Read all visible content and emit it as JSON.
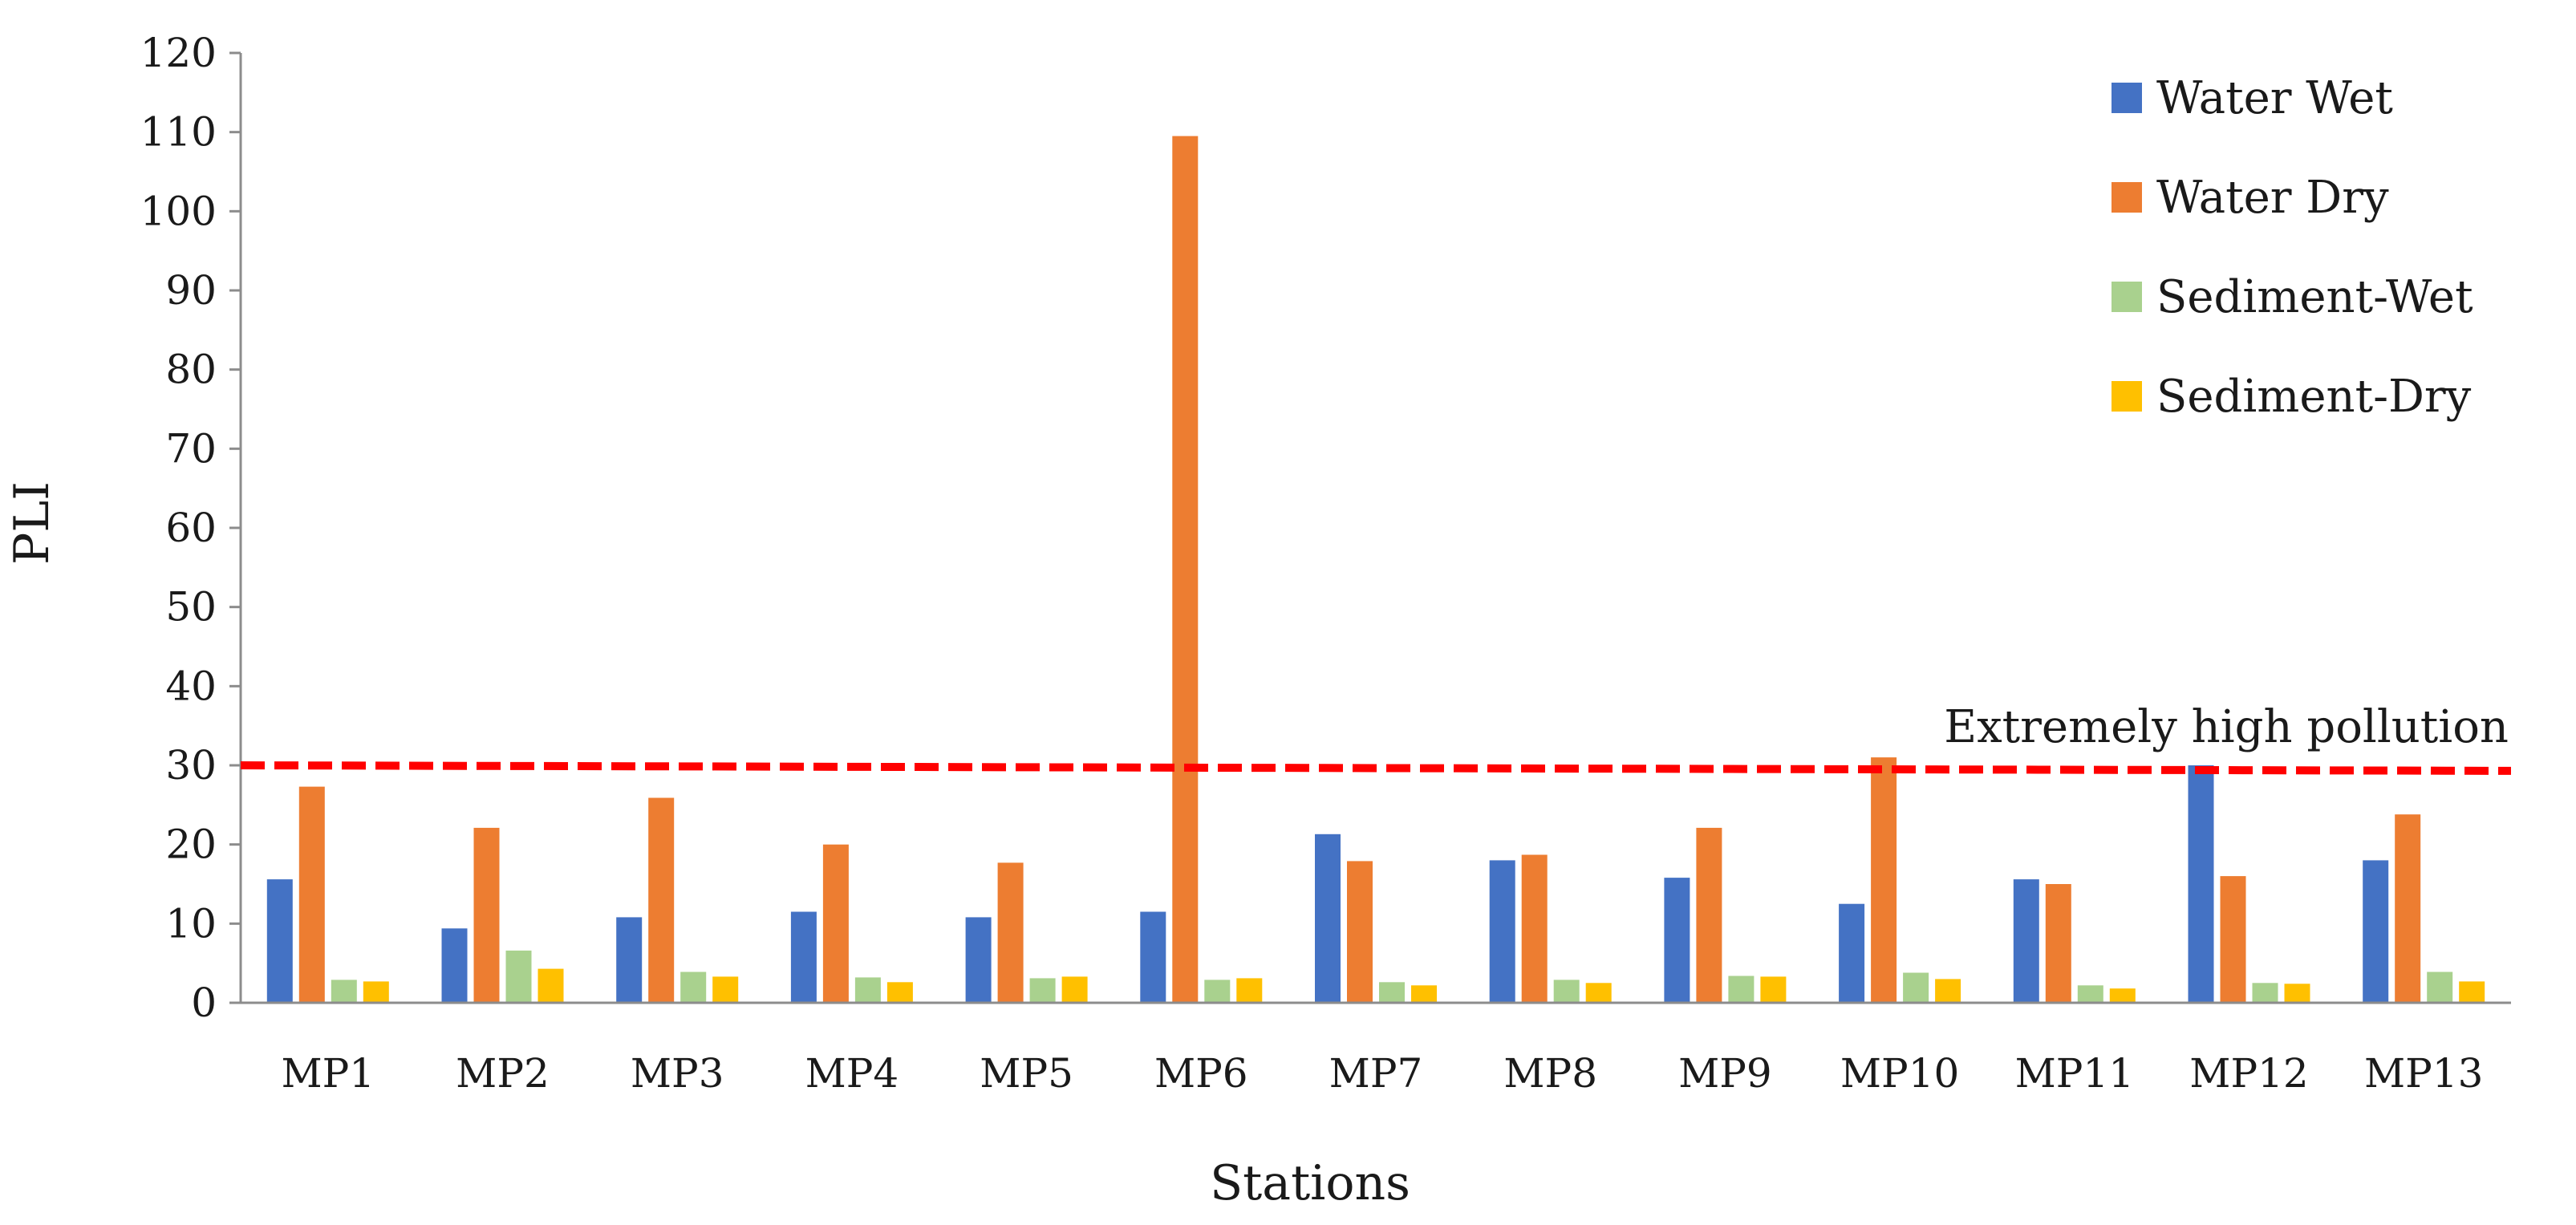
{
  "chart_data": {
    "type": "bar",
    "title": "",
    "xlabel": "Stations",
    "ylabel": "PLI",
    "ylim": [
      0,
      120
    ],
    "yticks": [
      0,
      10,
      20,
      30,
      40,
      50,
      60,
      70,
      80,
      90,
      100,
      110,
      120
    ],
    "grid": false,
    "legend_position": "top-right",
    "categories": [
      "MP1",
      "MP2",
      "MP3",
      "MP4",
      "MP5",
      "MP6",
      "MP7",
      "MP8",
      "MP9",
      "MP10",
      "MP11",
      "MP12",
      "MP13"
    ],
    "series": [
      {
        "name": "Water Wet",
        "color": "#4472C4",
        "values": [
          15.6,
          9.4,
          10.8,
          11.5,
          10.8,
          11.5,
          21.3,
          18.0,
          15.8,
          12.5,
          15.6,
          30.0,
          18.0
        ]
      },
      {
        "name": "Water Dry",
        "color": "#ED7D31",
        "values": [
          27.3,
          22.1,
          25.9,
          20.0,
          17.7,
          109.5,
          17.9,
          18.7,
          22.1,
          31.0,
          15.0,
          16.0,
          23.8
        ]
      },
      {
        "name": "Sediment-Wet",
        "color": "#A9D18E",
        "values": [
          2.9,
          6.6,
          3.9,
          3.2,
          3.1,
          2.9,
          2.6,
          2.9,
          3.4,
          3.8,
          2.2,
          2.5,
          3.9
        ]
      },
      {
        "name": "Sediment-Dry",
        "color": "#FFC000",
        "values": [
          2.7,
          4.3,
          3.3,
          2.6,
          3.3,
          3.1,
          2.2,
          2.5,
          3.3,
          3.0,
          1.8,
          2.4,
          2.7
        ]
      }
    ],
    "threshold": {
      "label": "Extremely high pollution",
      "start_value": 30,
      "end_value": 29.3,
      "color": "#FF0000",
      "style": "dashed"
    }
  }
}
